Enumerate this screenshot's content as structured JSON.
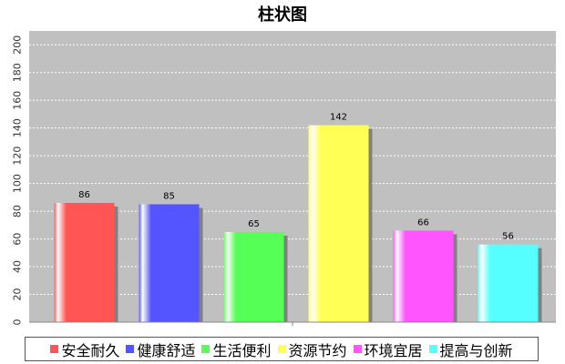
{
  "chart_data": {
    "type": "bar",
    "title": "柱状图",
    "xlabel": "",
    "ylabel": "",
    "categories": [
      "安全耐久",
      "健康舒适",
      "生活便利",
      "资源节约",
      "环境宜居",
      "提高与创新"
    ],
    "values": [
      86,
      85,
      65,
      142,
      66,
      56
    ],
    "colors": [
      "#ff5555",
      "#5555ff",
      "#55ff55",
      "#ffff55",
      "#ff55ff",
      "#55ffff"
    ],
    "ylim": [
      0,
      210
    ],
    "yticks": [
      0,
      20,
      40,
      60,
      80,
      100,
      120,
      140,
      160,
      180,
      200
    ],
    "grid": true,
    "legend_position": "bottom"
  }
}
